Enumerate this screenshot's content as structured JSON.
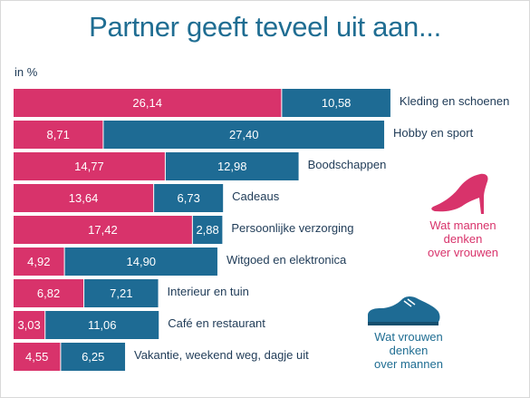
{
  "title": "Partner geeft teveel uit aan...",
  "unit": "in %",
  "colors": {
    "women_view": "#d8336b",
    "men_view": "#1e6b94",
    "title": "#1f6d92",
    "label": "#1f3b57"
  },
  "legend": {
    "women": [
      "Wat mannen",
      "denken",
      "over vrouwen"
    ],
    "men": [
      "Wat vrouwen",
      "denken",
      "over mannen"
    ]
  },
  "icons": {
    "women": "high-heel-shoe-icon",
    "men": "mens-shoe-icon"
  },
  "chart_data": {
    "type": "bar",
    "orientation": "horizontal",
    "stacked": true,
    "title": "Partner geeft teveel uit aan...",
    "unit": "in %",
    "categories": [
      "Kleding en schoenen",
      "Hobby en sport",
      "Boodschappen",
      "Cadeaus",
      "Persoonlijke verzorging",
      "Witgoed en elektronica",
      "Interieur en tuin",
      "Café en restaurant",
      "Vakantie, weekend weg, dagje uit"
    ],
    "series": [
      {
        "name": "Wat mannen denken over vrouwen",
        "values": [
          26.14,
          8.71,
          14.77,
          13.64,
          17.42,
          4.92,
          6.82,
          3.03,
          4.55
        ],
        "labels": [
          "26,14",
          "8,71",
          "14,77",
          "13,64",
          "17,42",
          "4,92",
          "6,82",
          "3,03",
          "4,55"
        ]
      },
      {
        "name": "Wat vrouwen denken over mannen",
        "values": [
          10.58,
          27.4,
          12.98,
          6.73,
          2.88,
          14.9,
          7.21,
          11.06,
          6.25
        ],
        "labels": [
          "10,58",
          "27,40",
          "12,98",
          "6,73",
          "2,88",
          "14,90",
          "7,21",
          "11,06",
          "6,25"
        ]
      }
    ],
    "legend_position": "right",
    "grid": false
  }
}
